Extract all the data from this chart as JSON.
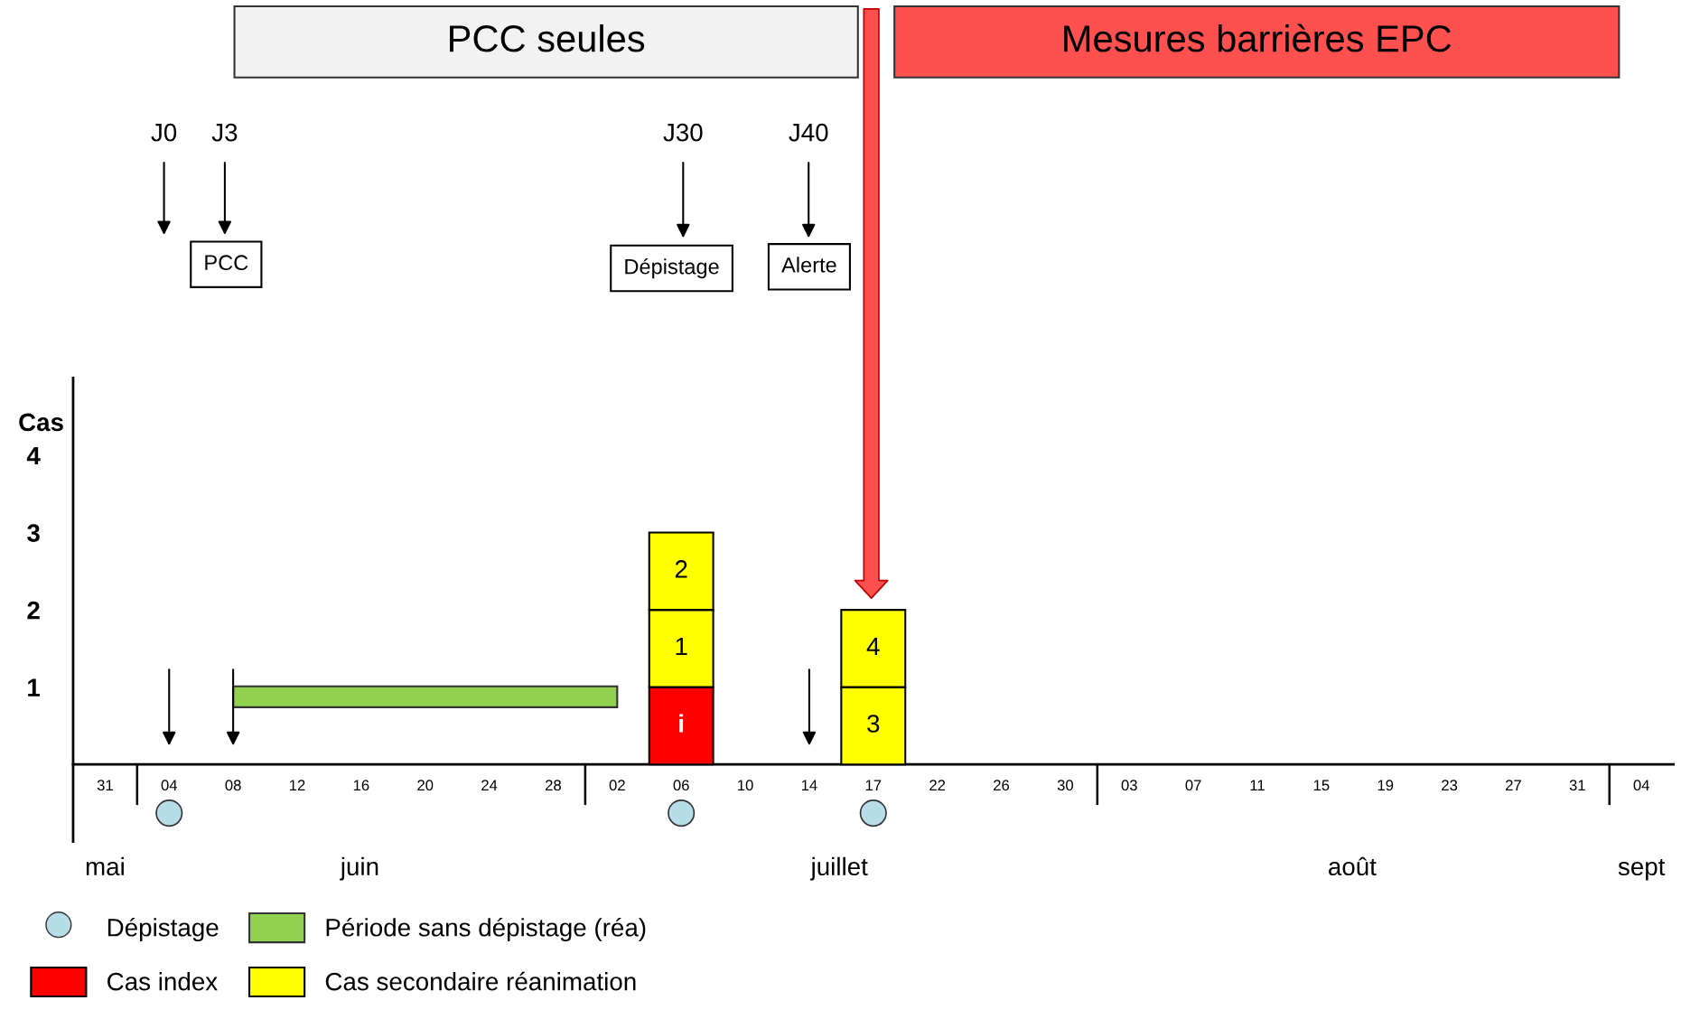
{
  "chart_data": {
    "type": "bar",
    "stacked": true,
    "ylabel": "Cas",
    "categories": [
      "31",
      "04",
      "08",
      "12",
      "16",
      "20",
      "24",
      "28",
      "02",
      "06",
      "10",
      "14",
      "17",
      "22",
      "26",
      "30",
      "03",
      "07",
      "11",
      "15",
      "19",
      "23",
      "27",
      "31",
      "04"
    ],
    "series": [
      {
        "name": "Cas index",
        "color": "#ff0000",
        "values": [
          null,
          null,
          null,
          null,
          null,
          null,
          null,
          null,
          null,
          1,
          null,
          null,
          null,
          null,
          null,
          null,
          null,
          null,
          null,
          null,
          null,
          null,
          null,
          null,
          null
        ]
      },
      {
        "name": "Cas secondaire réanimation",
        "color": "#ffff00",
        "values": [
          null,
          null,
          null,
          null,
          null,
          null,
          null,
          null,
          null,
          1,
          null,
          null,
          1,
          null,
          null,
          null,
          null,
          null,
          null,
          null,
          null,
          null,
          null,
          null,
          null
        ]
      },
      {
        "color": "#ffff00",
        "values": [
          null,
          null,
          null,
          null,
          null,
          null,
          null,
          null,
          null,
          1,
          null,
          null,
          1,
          null,
          null,
          null,
          null,
          null,
          null,
          null,
          null,
          null,
          null,
          null,
          null
        ]
      },
      {
        "type": "scatter",
        "name": "Dépistage",
        "color": "#b7dee8",
        "marker": "circle",
        "x": [
          "04",
          "06",
          "17"
        ],
        "values": [
          -0.63,
          -0.63,
          -0.63
        ]
      }
    ],
    "bands": [
      {
        "axis": "x",
        "from": "08",
        "to": "02",
        "label": "Période sans dépistage (réa)",
        "color": "#92d050"
      }
    ],
    "ylim": [
      -1,
      5
    ],
    "yticks": [
      1,
      2,
      3,
      4
    ],
    "annotations": [
      "i",
      "1",
      "2",
      "3",
      "4",
      "PCC seules",
      "Mesures barrières EPC",
      "J0",
      "J3",
      "J30",
      "J40",
      "PCC",
      "Dépistage",
      "Alerte",
      "mai",
      "juin",
      "juillet",
      "août",
      "sept"
    ],
    "legend": "bottom left",
    "grid": false
  }
}
